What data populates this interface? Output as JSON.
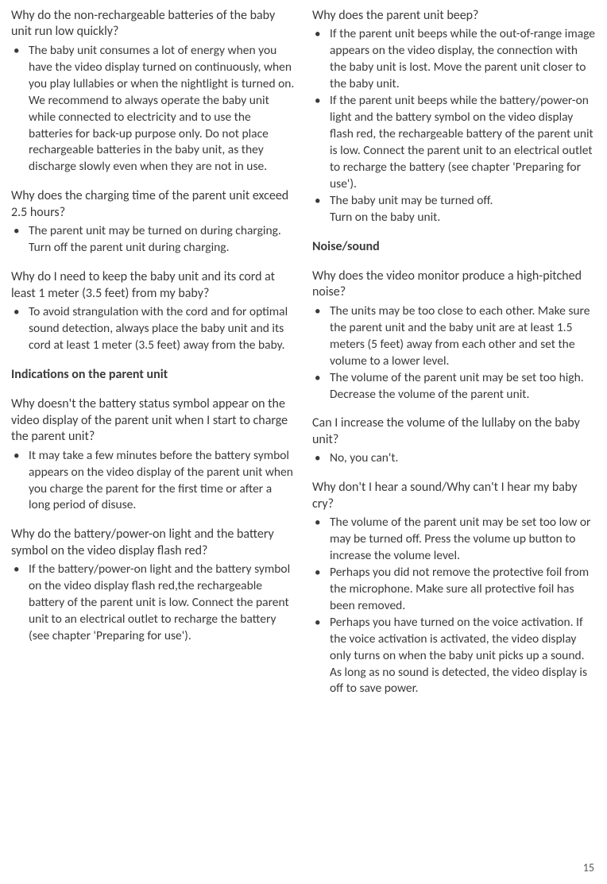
{
  "page_number": "15",
  "left": {
    "q1": {
      "question": "Why do the non-rechargeable batteries of the baby unit run low quickly?",
      "a1": "The baby unit consumes a lot of energy when you have the video display turned on continuously, when you play lullabies or when the nightlight is turned on. We recommend to always operate the baby unit while connected to electricity and to use the batteries for back-up purpose only. Do not place rechargeable batteries in the baby unit, as they discharge slowly even when they are not in use."
    },
    "q2": {
      "question": "Why does the charging time of the parent unit exceed 2.5 hours?",
      "a1": "The parent unit may be turned on during charging. Turn off the parent unit during charging."
    },
    "q3": {
      "question": " Why do I need to keep the baby unit and its cord at least 1 meter (3.5 feet) from my baby?",
      "a1": "To avoid strangulation with the cord and for optimal sound detection, always place the baby unit and its cord at least 1 meter (3.5 feet) away from the baby."
    },
    "section1": "Indications on the parent unit",
    "q4": {
      "question": "Why doesn't the battery status symbol appear on the video display of the parent unit when I start to charge the parent unit?",
      "a1": "It may take a few minutes before the battery symbol appears on the video display of the parent unit when you charge the parent for the first time or after a long period of disuse."
    },
    "q5": {
      "question": "Why do the battery/power-on light and the battery symbol on the video display flash red?",
      "a1": "If the battery/power-on light and the battery symbol on the video display flash red,the rechargeable battery of the parent unit is low. Connect the parent unit to an electrical outlet to recharge the battery (see chapter 'Preparing for use')."
    }
  },
  "right": {
    "q1": {
      "question": "Why does the parent unit beep?",
      "a1": " If the parent unit beeps while the out-of-range image appears on the video display, the connection with the baby unit is lost. Move the parent unit closer to the baby unit.",
      "a2": " If the parent unit beeps while the battery/power-on light and the battery symbol on the video display flash red, the rechargeable battery of the parent unit is low. Connect the parent unit to an electrical outlet to recharge the battery (see chapter 'Preparing for use').",
      "a3": "The baby unit may be turned off.",
      "a3_cont": "Turn on the baby unit."
    },
    "section1": "Noise/sound",
    "q2": {
      "question": "Why does the video monitor produce a high-pitched noise?",
      "a1": "The units may be too close to each other. Make sure the parent unit and the baby unit are at least 1.5 meters (5 feet) away from each other and set the volume to a lower level.",
      "a2": "The volume of the parent unit may be set too high. Decrease the volume of the parent unit."
    },
    "q3": {
      "question": "Can I increase the volume of the lullaby on the baby unit?",
      "a1": "No, you can't."
    },
    "q4": {
      "question": "Why don't I hear a sound/Why can't I hear my baby cry?",
      "a1": "The volume of the parent unit may be set too low or may be turned off. Press the volume up button to increase the volume level.",
      "a2": " Perhaps you did not remove the protective foil from the microphone. Make sure all protective foil has been removed.",
      "a3": "Perhaps you have turned on the voice activation. If the voice activation is activated, the video display only turns on when the baby unit picks up a sound. As long as no sound is detected, the video display is off to save power."
    }
  }
}
